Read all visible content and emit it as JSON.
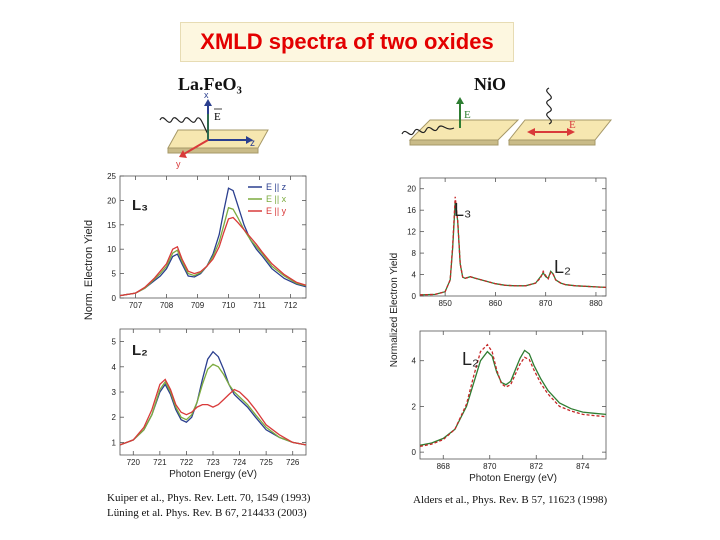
{
  "slide": {
    "title": "XMLD spectra of two oxides"
  },
  "left": {
    "formula": "La.FeO₃",
    "diagram": {
      "axis_x": "x",
      "axis_y": "y",
      "axis_z": "z",
      "field": "E"
    },
    "ylabel": "Norm. Electron Yield",
    "xlabel": "Photon Energy (eV)",
    "legend": [
      "E || z",
      "E || x",
      "E || y"
    ],
    "top_edge_label": "L₃",
    "bottom_edge_label": "L₂",
    "citation1": "Kuiper et al., Phys. Rev. Lett. 70, 1549 (1993)",
    "citation2": "Lüning et al. Phys. Rev. B 67, 214433 (2003)",
    "series_colors": [
      "#2b3f8f",
      "#7cab3f",
      "#d93a3a"
    ]
  },
  "right": {
    "formula": "NiO",
    "field": "E",
    "ylabel": "Normalized Electron Yield",
    "xlabel": "Photon Energy (eV)",
    "top_edge_labels": [
      "L₃",
      "L₂"
    ],
    "bottom_edge_label": "L₂",
    "citation": "Alders et al., Phys. Rev. B 57, 11623 (1998)",
    "series_colors": [
      "#2e7d32",
      "#c62828"
    ]
  },
  "chart_data": [
    {
      "type": "line",
      "id": "lafeo3_L3",
      "title": "",
      "xlabel": "",
      "ylabel": "Norm. Electron Yield",
      "xlim": [
        706.5,
        712.5
      ],
      "ylim": [
        0,
        25
      ],
      "xticks": [
        707,
        708,
        709,
        710,
        711,
        712
      ],
      "yticks": [
        0,
        5,
        10,
        15,
        20,
        25
      ],
      "annotation": "L₃",
      "legend": "top-right",
      "x": [
        706.5,
        707,
        707.3,
        707.6,
        707.8,
        708,
        708.2,
        708.35,
        708.5,
        708.7,
        708.9,
        709.1,
        709.3,
        709.5,
        709.7,
        709.85,
        710,
        710.15,
        710.3,
        710.5,
        710.7,
        710.9,
        711.1,
        711.4,
        711.8,
        712.2,
        712.5
      ],
      "series": [
        {
          "name": "E || z",
          "values": [
            0.5,
            1,
            2,
            3.5,
            4.5,
            6,
            8.5,
            9,
            7,
            4.5,
            4.3,
            5,
            6.5,
            9,
            13,
            18,
            22.5,
            22,
            19,
            15,
            12,
            10,
            8.5,
            6,
            4,
            2.8,
            2.3
          ]
        },
        {
          "name": "E || x",
          "values": [
            0.5,
            1,
            2,
            3.8,
            5,
            6.5,
            9.2,
            9.8,
            7.5,
            5,
            4.6,
            5.2,
            6.5,
            8.5,
            11.5,
            15,
            18.5,
            18.2,
            16.5,
            14,
            12,
            10.5,
            9,
            6.5,
            4.5,
            3,
            2.5
          ]
        },
        {
          "name": "E || y",
          "values": [
            0.5,
            1,
            2.2,
            4,
            5.5,
            7,
            10,
            10.5,
            8,
            5.5,
            5,
            5.4,
            6.5,
            8,
            10.5,
            13.5,
            16.2,
            16.5,
            15.5,
            14,
            12.5,
            11,
            9.3,
            7,
            4.8,
            3.2,
            2.6
          ]
        }
      ]
    },
    {
      "type": "line",
      "id": "lafeo3_L2",
      "title": "",
      "xlabel": "Photon Energy (eV)",
      "ylabel": "Norm. Electron Yield",
      "xlim": [
        719.5,
        726.5
      ],
      "ylim": [
        0.5,
        5.5
      ],
      "xticks": [
        720,
        721,
        722,
        723,
        724,
        725,
        726
      ],
      "yticks": [
        1,
        2,
        3,
        4,
        5
      ],
      "annotation": "L₂",
      "x": [
        719.5,
        720,
        720.4,
        720.7,
        721,
        721.2,
        721.4,
        721.6,
        721.8,
        722,
        722.2,
        722.4,
        722.6,
        722.8,
        723,
        723.2,
        723.4,
        723.6,
        723.8,
        724,
        724.3,
        724.6,
        725,
        725.5,
        726,
        726.5
      ],
      "series": [
        {
          "name": "E || z",
          "values": [
            0.9,
            1.1,
            1.5,
            2.1,
            3.0,
            3.3,
            2.9,
            2.3,
            1.9,
            1.8,
            2.0,
            2.6,
            3.5,
            4.3,
            4.6,
            4.4,
            3.9,
            3.3,
            2.9,
            2.7,
            2.4,
            2.0,
            1.5,
            1.2,
            1.0,
            0.9
          ]
        },
        {
          "name": "E || x",
          "values": [
            0.9,
            1.1,
            1.5,
            2.1,
            3.1,
            3.4,
            3.0,
            2.4,
            2.0,
            1.9,
            2.1,
            2.6,
            3.3,
            3.9,
            4.1,
            4.0,
            3.7,
            3.3,
            3.0,
            2.8,
            2.5,
            2.1,
            1.6,
            1.2,
            1.0,
            0.9
          ]
        },
        {
          "name": "E || y",
          "values": [
            0.9,
            1.1,
            1.6,
            2.3,
            3.3,
            3.5,
            3.1,
            2.5,
            2.2,
            2.1,
            2.2,
            2.4,
            2.5,
            2.5,
            2.4,
            2.5,
            2.7,
            2.9,
            3.1,
            3.0,
            2.7,
            2.3,
            1.7,
            1.3,
            1.0,
            0.9
          ]
        }
      ]
    },
    {
      "type": "line",
      "id": "nio_overview",
      "title": "",
      "xlabel": "",
      "ylabel": "Normalized Electron Yield",
      "xlim": [
        845,
        882
      ],
      "ylim": [
        0,
        22
      ],
      "xticks": [
        850,
        860,
        870,
        880
      ],
      "yticks": [
        0,
        4,
        8,
        12,
        16,
        20
      ],
      "annotations": [
        "L₃",
        "L₂"
      ],
      "x": [
        845,
        848,
        850,
        851,
        851.5,
        852,
        852.5,
        853,
        853.5,
        854,
        855,
        856,
        858,
        860,
        862,
        864,
        866,
        868,
        869,
        869.5,
        870,
        870.5,
        871,
        871.5,
        872,
        873,
        874,
        876,
        878,
        880,
        882
      ],
      "series": [
        {
          "values": [
            0.2,
            0.3,
            0.8,
            3,
            9,
            17.5,
            14,
            6,
            3.5,
            3.3,
            3.6,
            3.3,
            2.8,
            2.3,
            2,
            1.9,
            1.9,
            2.4,
            3.6,
            4.3,
            3.6,
            3.3,
            4.6,
            4.1,
            3,
            2.4,
            2.1,
            1.9,
            1.8,
            1.7,
            1.6
          ]
        },
        {
          "values": [
            0.2,
            0.3,
            0.8,
            3,
            9.5,
            18.5,
            14,
            6,
            3.5,
            3.3,
            3.6,
            3.3,
            2.8,
            2.3,
            2,
            1.9,
            1.9,
            2.4,
            3.4,
            4.6,
            3.8,
            3.2,
            4.4,
            4.0,
            3,
            2.4,
            2.1,
            1.9,
            1.8,
            1.7,
            1.6
          ]
        }
      ]
    },
    {
      "type": "line",
      "id": "nio_L2",
      "title": "",
      "xlabel": "Photon Energy (eV)",
      "ylabel": "",
      "xlim": [
        867,
        875
      ],
      "ylim": [
        -0.3,
        5.3
      ],
      "xticks": [
        868,
        870,
        872,
        874
      ],
      "yticks": [
        0,
        2,
        4
      ],
      "annotation": "L₂",
      "x": [
        867,
        867.5,
        868,
        868.5,
        869,
        869.3,
        869.6,
        869.9,
        870.1,
        870.3,
        870.5,
        870.7,
        870.9,
        871.1,
        871.3,
        871.5,
        871.7,
        871.9,
        872.2,
        872.5,
        873,
        873.5,
        874,
        874.5,
        875
      ],
      "series": [
        {
          "values": [
            0.3,
            0.4,
            0.6,
            1,
            2,
            3,
            4,
            4.4,
            4.2,
            3.5,
            3.05,
            2.95,
            3.1,
            3.6,
            4.1,
            4.45,
            4.3,
            3.8,
            3.2,
            2.7,
            2.15,
            1.9,
            1.75,
            1.7,
            1.65
          ]
        },
        {
          "values": [
            0.25,
            0.35,
            0.55,
            1,
            2.1,
            3.3,
            4.4,
            4.7,
            4.4,
            3.6,
            3.0,
            2.85,
            2.95,
            3.4,
            3.85,
            4.15,
            4.05,
            3.6,
            3.0,
            2.55,
            2.0,
            1.8,
            1.65,
            1.6,
            1.55
          ]
        }
      ]
    }
  ]
}
